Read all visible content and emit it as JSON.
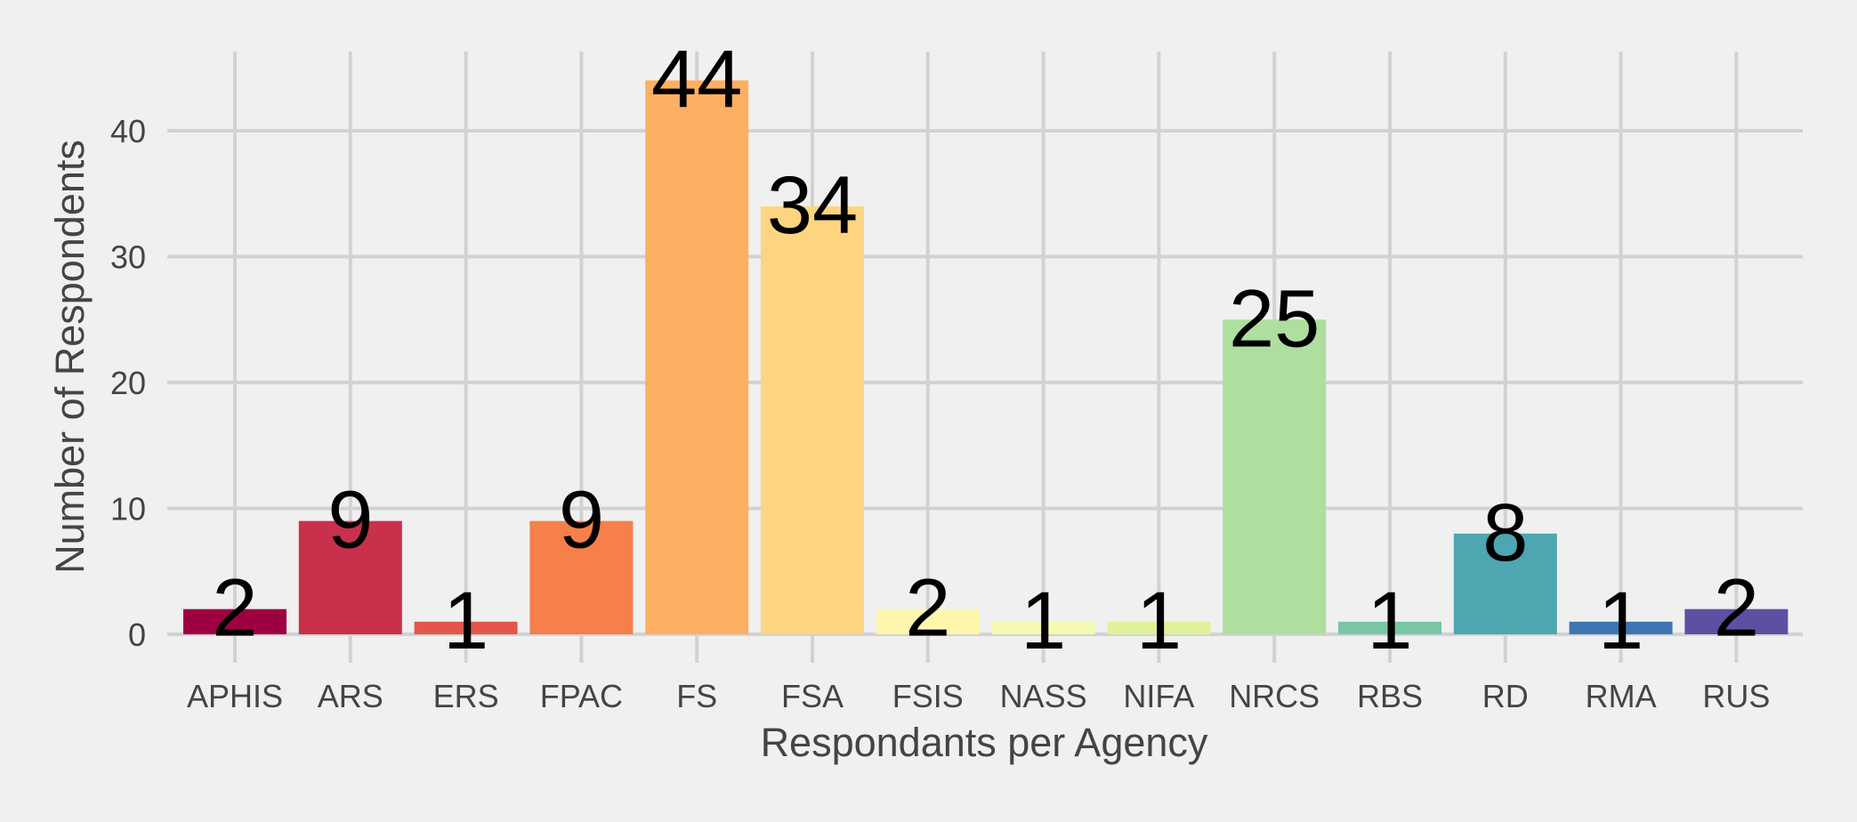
{
  "chart_data": {
    "type": "bar",
    "xlabel": "Respondants per Agency",
    "ylabel": "Number of Respondents",
    "categories": [
      "APHIS",
      "ARS",
      "ERS",
      "FPAC",
      "FS",
      "FSA",
      "FSIS",
      "NASS",
      "NIFA",
      "NRCS",
      "RBS",
      "RD",
      "RMA",
      "RUS"
    ],
    "values": [
      2,
      9,
      1,
      9,
      44,
      34,
      2,
      1,
      1,
      25,
      1,
      8,
      1,
      2
    ],
    "colors": [
      "#9e0142",
      "#c8304b",
      "#e4564a",
      "#f67f4a",
      "#fdaf62",
      "#fdd581",
      "#fef6ad",
      "#f4fbaf",
      "#dff299",
      "#aedf9f",
      "#78c6a3",
      "#4ea6b1",
      "#3d75b5",
      "#5e4fa2"
    ],
    "yticks": [
      0,
      10,
      20,
      30,
      40
    ],
    "ylim": [
      0,
      44
    ],
    "grid": true,
    "legend": "none"
  }
}
